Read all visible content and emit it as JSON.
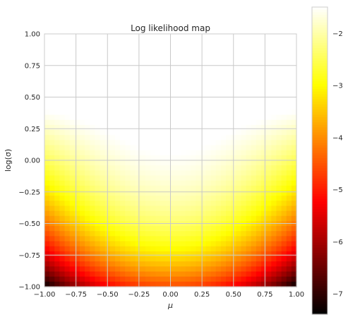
{
  "chart_data": {
    "type": "heatmap",
    "title": "Log likelihood map",
    "xlabel": "μ",
    "ylabel": "log(σ)",
    "xlim": [
      -1.0,
      1.0
    ],
    "ylim": [
      -1.0,
      1.0
    ],
    "x_ticks": [
      "−1.00",
      "−0.75",
      "−0.50",
      "−0.25",
      "0.00",
      "0.25",
      "0.50",
      "0.75",
      "1.00"
    ],
    "y_ticks": [
      "−1.00",
      "−0.75",
      "−0.50",
      "−0.25",
      "0.00",
      "0.25",
      "0.50",
      "0.75",
      "1.00"
    ],
    "grid": true,
    "colormap": "hot",
    "colorbar": {
      "range": [
        -7.4,
        -1.5
      ],
      "ticks": [
        "−7",
        "−6",
        "−5",
        "−4",
        "−3",
        "−2"
      ]
    },
    "surface": {
      "peak_mu": 0.0,
      "peak_log_sigma": 0.0,
      "peak_value": -1.55,
      "bottom_center_value": -4.6,
      "bottom_corner_value": -7.4,
      "top_corner_value": -2.3
    }
  }
}
